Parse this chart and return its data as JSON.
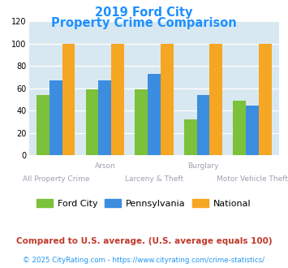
{
  "title_line1": "2019 Ford City",
  "title_line2": "Property Crime Comparison",
  "title_color": "#1e90ff",
  "categories": [
    "All Property Crime",
    "Arson",
    "Larceny & Theft",
    "Burglary",
    "Motor Vehicle Theft"
  ],
  "ford_city": [
    54,
    59,
    59,
    32,
    49
  ],
  "pennsylvania": [
    67,
    67,
    73,
    54,
    45
  ],
  "national": [
    100,
    100,
    100,
    100,
    100
  ],
  "ford_city_color": "#7bc13a",
  "pennsylvania_color": "#3b8de0",
  "national_color": "#f5a623",
  "ylim": [
    0,
    120
  ],
  "yticks": [
    0,
    20,
    40,
    60,
    80,
    100,
    120
  ],
  "bg_color": "#d8e8f0",
  "fig_bg": "#ffffff",
  "legend_labels": [
    "Ford City",
    "Pennsylvania",
    "National"
  ],
  "top_labels": [
    "",
    "Arson",
    "",
    "Burglary",
    ""
  ],
  "bot_labels": [
    "All Property Crime",
    "",
    "Larceny & Theft",
    "",
    "Motor Vehicle Theft"
  ],
  "label_color": "#a0a0b0",
  "footnote1": "Compared to U.S. average. (U.S. average equals 100)",
  "footnote2": "© 2025 CityRating.com - https://www.cityrating.com/crime-statistics/",
  "footnote1_color": "#c0392b",
  "footnote2_color": "#2196f3"
}
